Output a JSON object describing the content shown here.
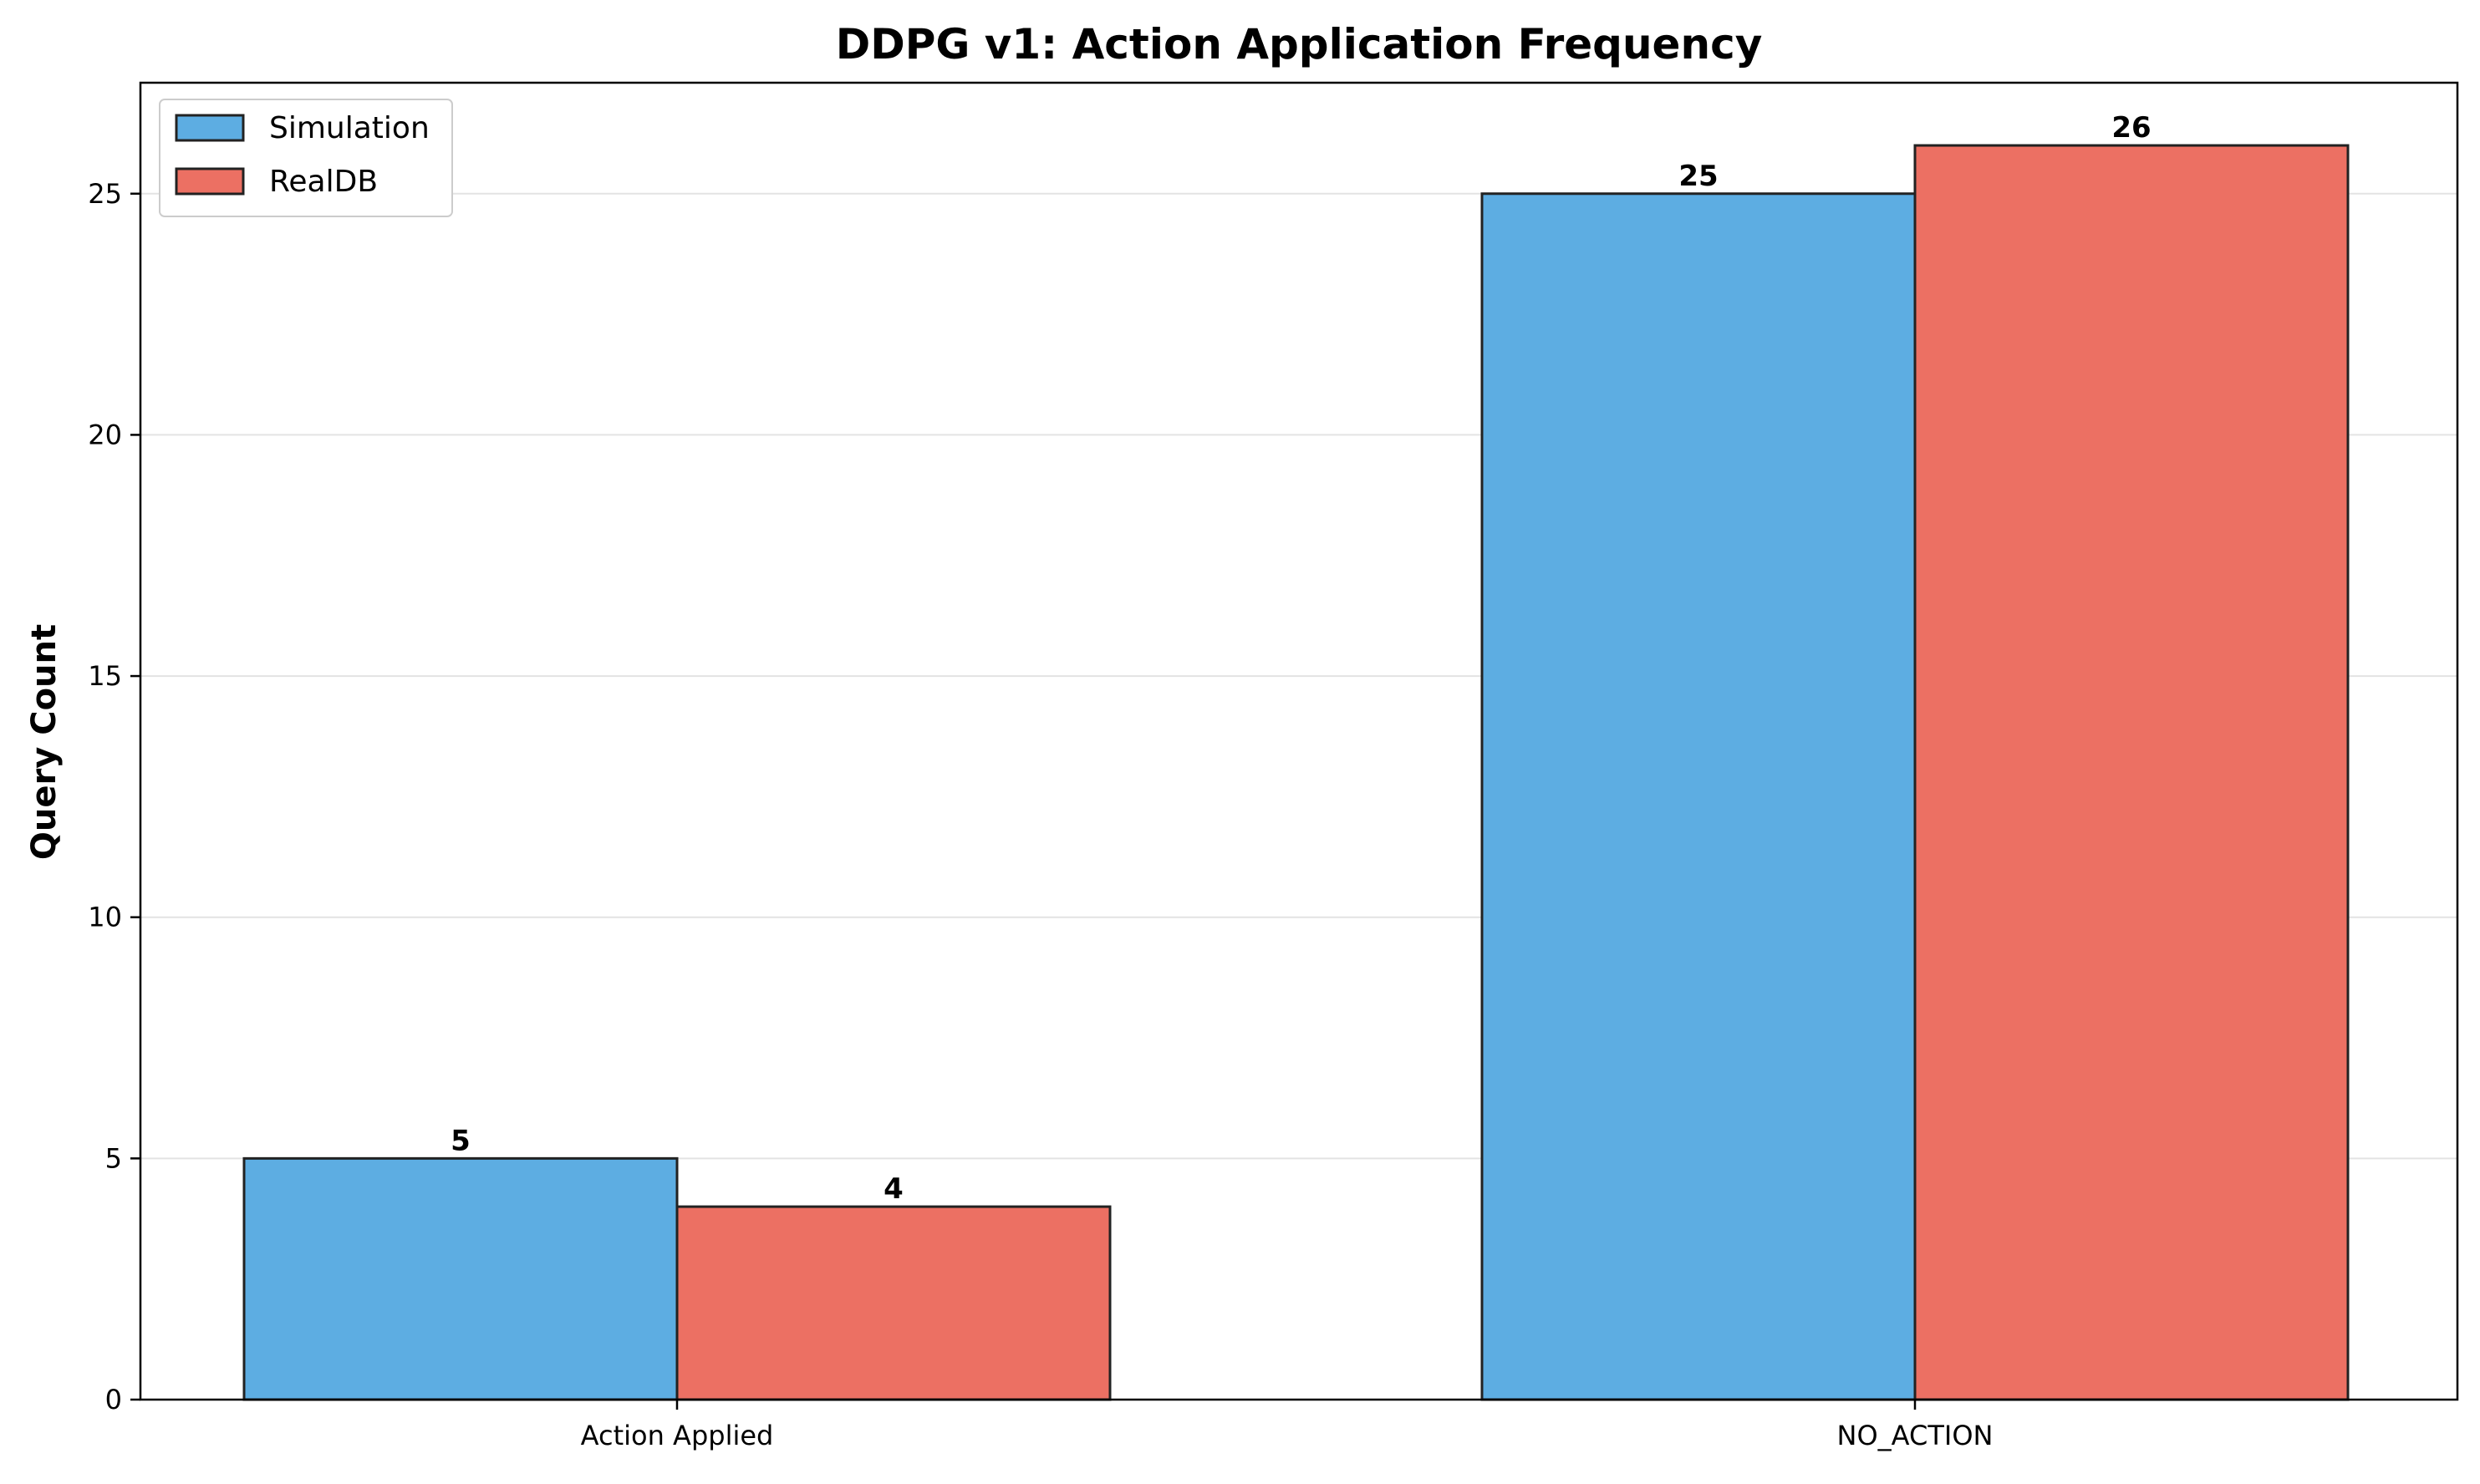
{
  "chart_data": {
    "type": "bar",
    "title": "DDPG v1: Action Application Frequency",
    "xlabel": "",
    "ylabel": "Query Count",
    "categories": [
      "Action Applied",
      "NO_ACTION"
    ],
    "series": [
      {
        "name": "Simulation",
        "values": [
          5,
          25
        ],
        "color": "#5dade2"
      },
      {
        "name": "RealDB",
        "values": [
          4,
          26
        ],
        "color": "#ec7063"
      }
    ],
    "ylim": [
      0,
      27.3
    ],
    "yticks": [
      0,
      5,
      10,
      15,
      20,
      25
    ],
    "grid": "y",
    "legend": "top-left"
  }
}
